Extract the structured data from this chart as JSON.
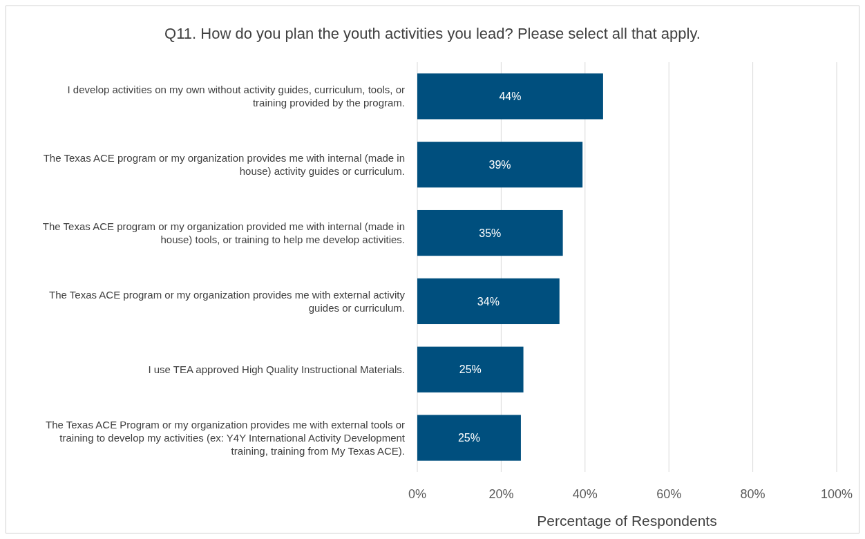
{
  "chart_data": {
    "type": "bar",
    "orientation": "horizontal",
    "title": "Q11. How do you plan the youth activities you lead? Please select all that apply.",
    "xlabel": "Percentage of Respondents",
    "categories": [
      "I develop activities on my own without activity guides, curriculum, tools, or training provided by the program.",
      "The Texas ACE program or my organization provides me with internal (made in house) activity guides or curriculum.",
      "The Texas ACE program or my organization provided me with internal (made in house) tools, or training to help me develop activities.",
      "The Texas ACE program or my organization provides me with external activity guides or curriculum.",
      "I use TEA approved High Quality Instructional Materials.",
      "The Texas ACE Program or my organization provides me with external tools or training to develop my activities (ex: Y4Y International Activity Development training, training from My Texas ACE)."
    ],
    "values": [
      44.3,
      39.4,
      34.7,
      33.9,
      25.3,
      24.7
    ],
    "value_labels": [
      "44%",
      "39%",
      "35%",
      "34%",
      "25%",
      "25%"
    ],
    "color": "#004f7e",
    "xlim": [
      0,
      100
    ],
    "xticks": [
      {
        "value": 0,
        "label": "0%"
      },
      {
        "value": 20,
        "label": "20%"
      },
      {
        "value": 40,
        "label": "40%"
      },
      {
        "value": 60,
        "label": "60%"
      },
      {
        "value": 80,
        "label": "80%"
      },
      {
        "value": 100,
        "label": "100%"
      }
    ],
    "grid": "x"
  }
}
